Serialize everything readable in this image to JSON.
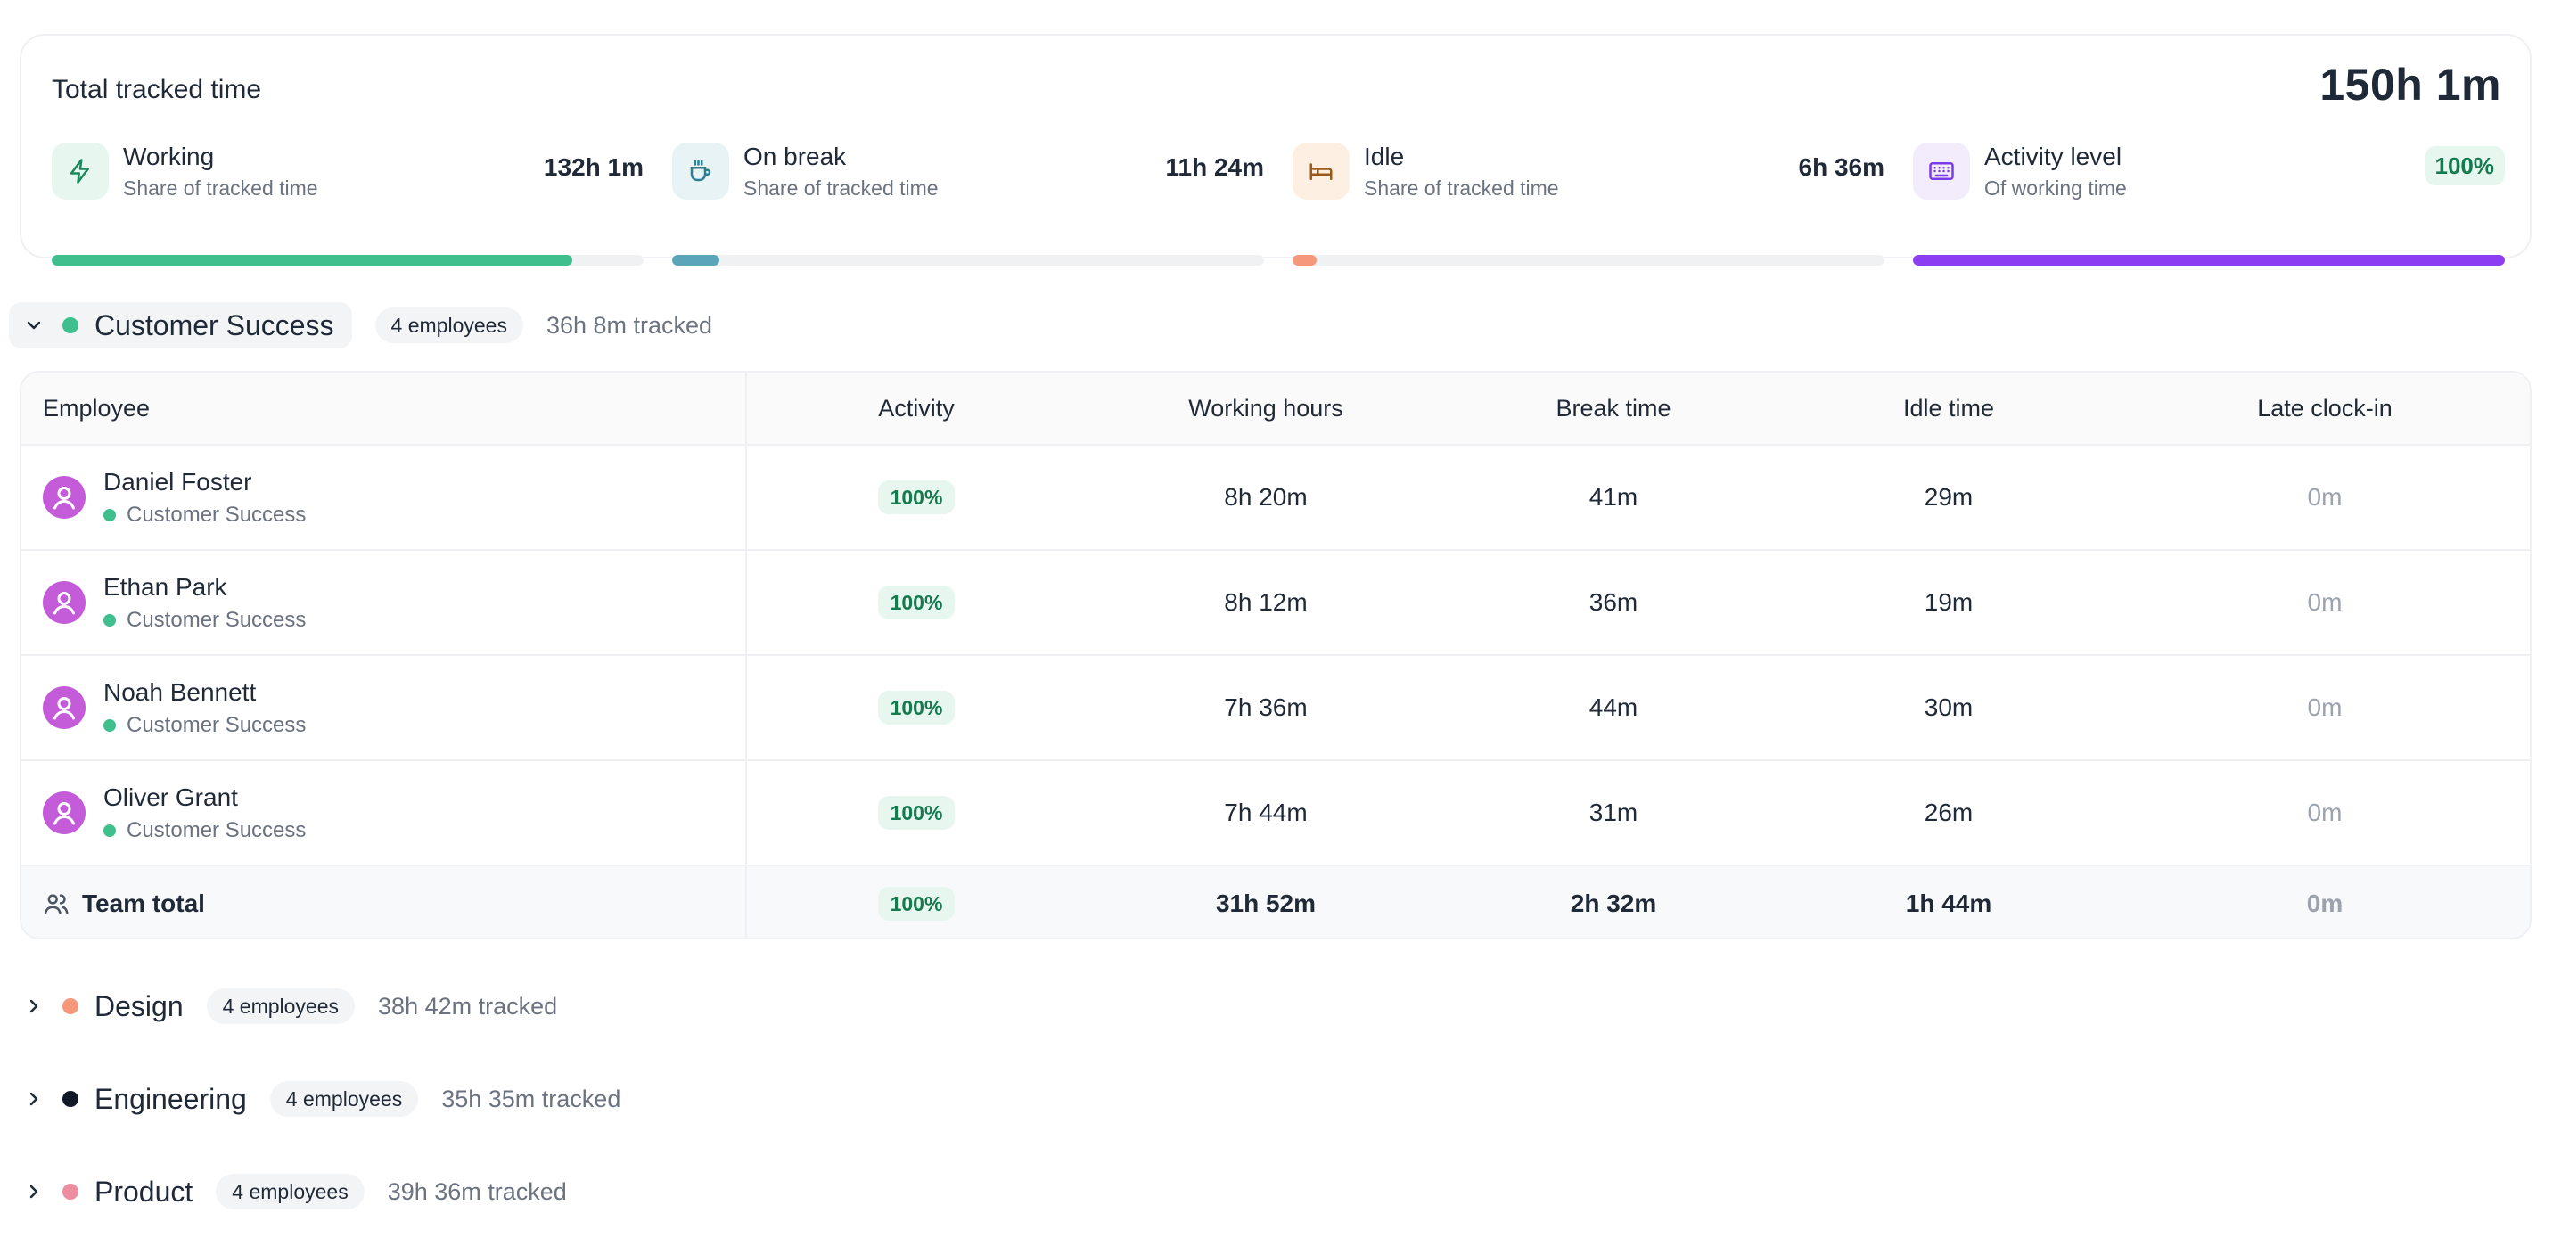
{
  "summary": {
    "title": "Total tracked time",
    "total": "150h 1m",
    "metrics": [
      {
        "label": "Working",
        "sub": "Share of tracked time",
        "value": "132h 1m",
        "share": 0.88,
        "color": "#3fbf8e",
        "icon": "bolt-icon"
      },
      {
        "label": "On break",
        "sub": "Share of tracked time",
        "value": "11h 24m",
        "share": 0.08,
        "color": "#5aa6b8",
        "icon": "coffee-icon"
      },
      {
        "label": "Idle",
        "sub": "Share of tracked time",
        "value": "6h 36m",
        "share": 0.04,
        "color": "#f4977a",
        "icon": "bed-icon"
      },
      {
        "label": "Activity level",
        "sub": "Of working time",
        "value": "100%",
        "share": 1.0,
        "color": "#8b3ff0",
        "icon": "keyboard-icon"
      }
    ]
  },
  "groups": [
    {
      "name": "Customer Success",
      "count": "4 employees",
      "tracked": "36h 8m tracked",
      "color": "#3fbf8e",
      "expanded": true
    },
    {
      "name": "Design",
      "count": "4 employees",
      "tracked": "38h 42m tracked",
      "color": "#f4977a",
      "expanded": false
    },
    {
      "name": "Engineering",
      "count": "4 employees",
      "tracked": "35h 35m tracked",
      "color": "#111827",
      "expanded": false
    },
    {
      "name": "Product",
      "count": "4 employees",
      "tracked": "39h 36m tracked",
      "color": "#ec8ea0",
      "expanded": false
    }
  ],
  "table": {
    "headers": [
      "Employee",
      "Activity",
      "Working hours",
      "Break time",
      "Idle time",
      "Late clock-in"
    ],
    "rows": [
      {
        "name": "Daniel Foster",
        "team": "Customer Success",
        "activity": "100%",
        "working": "8h 20m",
        "break": "41m",
        "idle": "29m",
        "late": "0m"
      },
      {
        "name": "Ethan Park",
        "team": "Customer Success",
        "activity": "100%",
        "working": "8h 12m",
        "break": "36m",
        "idle": "19m",
        "late": "0m"
      },
      {
        "name": "Noah Bennett",
        "team": "Customer Success",
        "activity": "100%",
        "working": "7h 36m",
        "break": "44m",
        "idle": "30m",
        "late": "0m"
      },
      {
        "name": "Oliver Grant",
        "team": "Customer Success",
        "activity": "100%",
        "working": "7h 44m",
        "break": "31m",
        "idle": "26m",
        "late": "0m"
      }
    ],
    "total": {
      "label": "Team total",
      "activity": "100%",
      "working": "31h 52m",
      "break": "2h 32m",
      "idle": "1h 44m",
      "late": "0m"
    }
  },
  "colors": {
    "accent_green": "#3fbf8e",
    "activity_purple": "#8b3ff0",
    "avatar": "#c45bd8"
  }
}
